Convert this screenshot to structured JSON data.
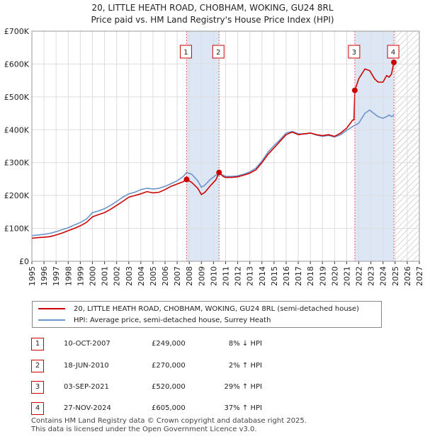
{
  "title_line1": "20, LITTLE HEATH ROAD, CHOBHAM, WOKING, GU24 8RL",
  "title_line2": "Price paid vs. HM Land Registry's House Price Index (HPI)",
  "colors": {
    "property": "#cc0000",
    "hpi": "#6a95cc",
    "shade": "#dde6f5",
    "grid": "#dddddd",
    "marker_line": "#e06060"
  },
  "chart_data": {
    "type": "line",
    "xlim": [
      1995,
      2027
    ],
    "ylim": [
      0,
      700000
    ],
    "x_ticks": [
      "1995",
      "1996",
      "1997",
      "1998",
      "1999",
      "2000",
      "2001",
      "2002",
      "2003",
      "2004",
      "2005",
      "2006",
      "2007",
      "2008",
      "2009",
      "2010",
      "2011",
      "2012",
      "2013",
      "2014",
      "2015",
      "2016",
      "2017",
      "2018",
      "2019",
      "2020",
      "2021",
      "2022",
      "2023",
      "2024",
      "2025",
      "2026",
      "2027"
    ],
    "y_ticks": [
      {
        "value": 0,
        "label": "£0"
      },
      {
        "value": 100000,
        "label": "£100K"
      },
      {
        "value": 200000,
        "label": "£200K"
      },
      {
        "value": 300000,
        "label": "£300K"
      },
      {
        "value": 400000,
        "label": "£400K"
      },
      {
        "value": 500000,
        "label": "£500K"
      },
      {
        "value": 600000,
        "label": "£600K"
      },
      {
        "value": 700000,
        "label": "£700K"
      }
    ],
    "shaded_periods": [
      [
        2007.78,
        2010.46
      ],
      [
        2021.67,
        2024.9
      ]
    ],
    "hatched_from": 2025.0,
    "series": [
      {
        "name": "20, LITTLE HEATH ROAD, CHOBHAM, WOKING, GU24 8RL (semi-detached house)",
        "color": "#cc0000",
        "x": [
          1995.0,
          1995.5,
          1996.0,
          1996.5,
          1997.0,
          1997.5,
          1998.0,
          1998.5,
          1999.0,
          1999.5,
          2000.0,
          2000.5,
          2001.0,
          2001.5,
          2002.0,
          2002.5,
          2003.0,
          2003.5,
          2004.0,
          2004.5,
          2005.0,
          2005.5,
          2006.0,
          2006.5,
          2007.0,
          2007.5,
          2007.78,
          2008.2,
          2008.7,
          2009.0,
          2009.3,
          2009.7,
          2010.2,
          2010.46,
          2010.8,
          2011.0,
          2011.5,
          2012.0,
          2012.5,
          2013.0,
          2013.5,
          2014.0,
          2014.5,
          2015.0,
          2015.5,
          2016.0,
          2016.5,
          2017.0,
          2017.5,
          2018.0,
          2018.5,
          2019.0,
          2019.5,
          2020.0,
          2020.5,
          2021.0,
          2021.5,
          2021.6,
          2021.67,
          2022.0,
          2022.5,
          2022.9,
          2023.3,
          2023.6,
          2024.0,
          2024.3,
          2024.5,
          2024.7,
          2024.9
        ],
        "y": [
          70000,
          72000,
          73000,
          75000,
          80000,
          86000,
          93000,
          100000,
          108000,
          118000,
          135000,
          142000,
          148000,
          158000,
          170000,
          182000,
          195000,
          200000,
          205000,
          212000,
          208000,
          210000,
          218000,
          228000,
          235000,
          242000,
          249000,
          240000,
          222000,
          203000,
          210000,
          228000,
          248000,
          270000,
          258000,
          255000,
          255000,
          257000,
          262000,
          268000,
          278000,
          300000,
          325000,
          345000,
          365000,
          385000,
          393000,
          385000,
          388000,
          390000,
          385000,
          382000,
          385000,
          380000,
          390000,
          405000,
          430000,
          430000,
          520000,
          555000,
          585000,
          580000,
          555000,
          545000,
          545000,
          565000,
          560000,
          570000,
          605000
        ]
      },
      {
        "name": "HPI: Average price, semi-detached house, Surrey Heath",
        "color": "#6a95cc",
        "x": [
          1995.0,
          1995.5,
          1996.0,
          1996.5,
          1997.0,
          1997.5,
          1998.0,
          1998.5,
          1999.0,
          1999.5,
          2000.0,
          2000.5,
          2001.0,
          2001.5,
          2002.0,
          2002.5,
          2003.0,
          2003.5,
          2004.0,
          2004.5,
          2005.0,
          2005.5,
          2006.0,
          2006.5,
          2007.0,
          2007.5,
          2007.78,
          2008.2,
          2008.7,
          2009.0,
          2009.3,
          2009.7,
          2010.2,
          2010.46,
          2010.8,
          2011.0,
          2011.5,
          2012.0,
          2012.5,
          2013.0,
          2013.5,
          2014.0,
          2014.5,
          2015.0,
          2015.5,
          2016.0,
          2016.5,
          2017.0,
          2017.5,
          2018.0,
          2018.5,
          2019.0,
          2019.5,
          2020.0,
          2020.5,
          2021.0,
          2021.5,
          2022.0,
          2022.5,
          2022.9,
          2023.3,
          2023.6,
          2024.0,
          2024.3,
          2024.5,
          2024.7,
          2024.9
        ],
        "y": [
          78000,
          80000,
          82000,
          85000,
          90000,
          96000,
          102000,
          110000,
          118000,
          128000,
          148000,
          153000,
          160000,
          170000,
          182000,
          195000,
          205000,
          210000,
          218000,
          222000,
          220000,
          222000,
          228000,
          236000,
          245000,
          258000,
          270000,
          265000,
          245000,
          225000,
          232000,
          248000,
          262000,
          265000,
          262000,
          258000,
          258000,
          260000,
          265000,
          272000,
          283000,
          305000,
          332000,
          352000,
          370000,
          390000,
          395000,
          388000,
          387000,
          390000,
          384000,
          380000,
          383000,
          378000,
          385000,
          398000,
          410000,
          420000,
          450000,
          460000,
          448000,
          440000,
          435000,
          440000,
          445000,
          440000,
          445000
        ]
      }
    ],
    "sales": [
      {
        "label": "1",
        "x": 2007.78,
        "y": 249000
      },
      {
        "label": "2",
        "x": 2010.46,
        "y": 270000
      },
      {
        "label": "3",
        "x": 2021.67,
        "y": 520000
      },
      {
        "label": "4",
        "x": 2024.9,
        "y": 605000
      }
    ]
  },
  "legend": {
    "property": "20, LITTLE HEATH ROAD, CHOBHAM, WOKING, GU24 8RL (semi-detached house)",
    "hpi": "HPI: Average price, semi-detached house, Surrey Heath"
  },
  "sales_table": [
    {
      "num": "1",
      "date": "10-OCT-2007",
      "price": "£249,000",
      "hpi": "8% ↓ HPI"
    },
    {
      "num": "2",
      "date": "18-JUN-2010",
      "price": "£270,000",
      "hpi": "2% ↑ HPI"
    },
    {
      "num": "3",
      "date": "03-SEP-2021",
      "price": "£520,000",
      "hpi": "29% ↑ HPI"
    },
    {
      "num": "4",
      "date": "27-NOV-2024",
      "price": "£605,000",
      "hpi": "37% ↑ HPI"
    }
  ],
  "footer": {
    "line1": "Contains HM Land Registry data © Crown copyright and database right 2025.",
    "line2": "This data is licensed under the Open Government Licence v3.0."
  }
}
